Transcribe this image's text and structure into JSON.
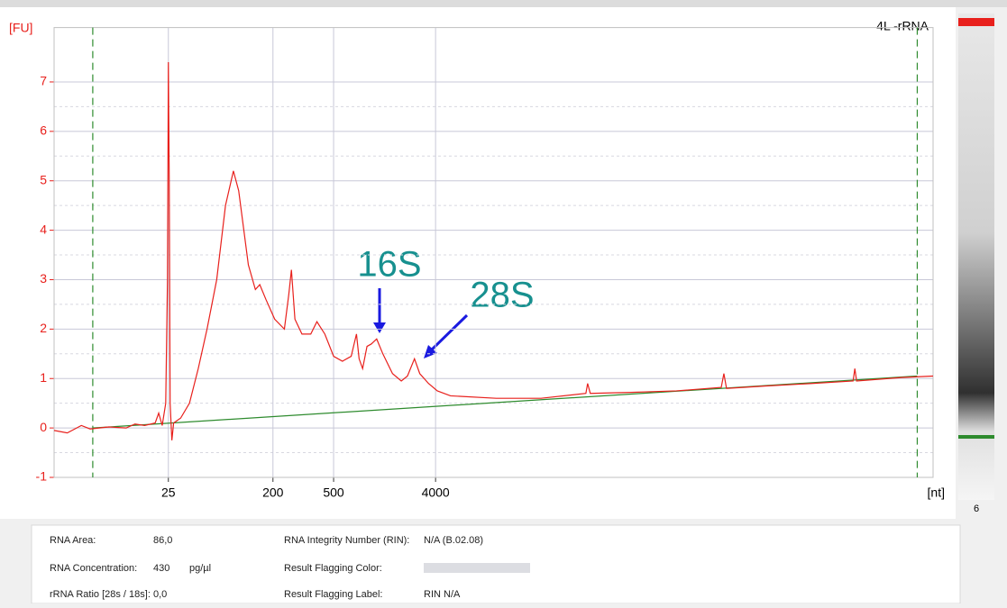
{
  "chart_data": {
    "type": "line",
    "title": "4L -rRNA",
    "ylabel": "[FU]",
    "xlabel": "[nt]",
    "xlim": [
      0,
      100
    ],
    "ylim": [
      -1,
      8.1
    ],
    "xticks": [
      {
        "value": 13.0,
        "label": "25"
      },
      {
        "value": 24.9,
        "label": "200"
      },
      {
        "value": 31.8,
        "label": "500"
      },
      {
        "value": 43.4,
        "label": "4000"
      }
    ],
    "yticks": [
      -1,
      0,
      1,
      2,
      3,
      4,
      5,
      6,
      7
    ],
    "grid": true,
    "markers": [
      4.4,
      98.2
    ],
    "marker_color": "#2e8b2e",
    "series": [
      {
        "color": "#e8201c",
        "x": [
          0,
          1.5,
          3.1,
          4.1,
          6.2,
          8.2,
          9.2,
          10.3,
          11.5,
          11.9,
          12.3,
          12.7,
          12.9,
          13.0,
          13.1,
          13.2,
          13.4,
          13.6,
          14.4,
          15.4,
          16.4,
          17.4,
          18.5,
          19.5,
          20.4,
          21.0,
          22.1,
          22.9,
          23.4,
          24.1,
          25.1,
          26.2,
          26.7,
          27.0,
          27.4,
          28.2,
          29.2,
          29.9,
          30.8,
          31.8,
          32.8,
          33.8,
          34.4,
          34.7,
          35.1,
          35.6,
          36.1,
          36.7,
          37.4,
          38.5,
          39.5,
          40.2,
          41.0,
          41.6,
          42.6,
          43.6,
          45.1,
          50.3,
          55.4,
          60.5,
          60.7,
          61.0,
          65.6,
          70.8,
          75.9,
          76.2,
          76.5,
          81.0,
          86.2,
          90.9,
          91.1,
          91.3,
          96.4,
          100
        ],
        "values": [
          -0.05,
          -0.1,
          0.05,
          -0.02,
          0.02,
          0,
          0.08,
          0.05,
          0.1,
          0.3,
          0.05,
          0.5,
          3,
          7.4,
          5,
          0.5,
          -0.25,
          0.1,
          0.2,
          0.5,
          1.2,
          2,
          3,
          4.5,
          5.2,
          4.8,
          3.3,
          2.8,
          2.9,
          2.6,
          2.2,
          2.0,
          2.7,
          3.2,
          2.2,
          1.9,
          1.9,
          2.15,
          1.9,
          1.45,
          1.35,
          1.45,
          1.9,
          1.4,
          1.2,
          1.65,
          1.7,
          1.8,
          1.5,
          1.1,
          0.95,
          1.05,
          1.4,
          1.1,
          0.9,
          0.75,
          0.65,
          0.6,
          0.6,
          0.7,
          0.9,
          0.7,
          0.72,
          0.75,
          0.82,
          1.1,
          0.8,
          0.85,
          0.9,
          0.95,
          1.2,
          0.95,
          1.02,
          1.05
        ]
      },
      {
        "color": "#2e8b2e",
        "x": [
          4.4,
          98.2
        ],
        "values": [
          0,
          1.05
        ]
      }
    ],
    "annotations": [
      "16S",
      "28S"
    ]
  },
  "gel": {
    "lane": "6"
  },
  "table": {
    "rows": [
      [
        "RNA Area:",
        "86,0",
        "",
        "RNA Integrity Number (RIN):",
        "N/A   (B.02.08)"
      ],
      [
        "RNA Concentration:",
        "430",
        "pg/µl",
        "Result Flagging Color:",
        ""
      ],
      [
        "rRNA Ratio [28s / 18s]:",
        "0,0",
        "",
        "Result Flagging Label:",
        "RIN N/A"
      ]
    ]
  }
}
